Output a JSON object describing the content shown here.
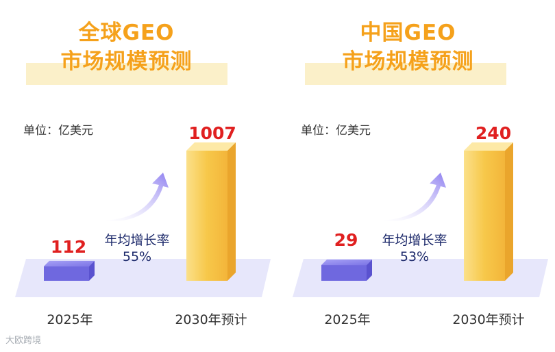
{
  "chart_data": [
    {
      "type": "bar",
      "title_line1": "全球GEO",
      "title_line2": "市场规模预测",
      "unit_label": "单位：亿美元",
      "categories": [
        "2025年",
        "2030年预计"
      ],
      "values": [
        112,
        1007
      ],
      "value_labels": [
        "112",
        "1007"
      ],
      "cagr_label": "年均增长率",
      "cagr_value": "55%"
    },
    {
      "type": "bar",
      "title_line1": "中国GEO",
      "title_line2": "市场规模预测",
      "unit_label": "单位：亿美元",
      "categories": [
        "2025年",
        "2030年预计"
      ],
      "values": [
        29,
        240
      ],
      "value_labels": [
        "29",
        "240"
      ],
      "cagr_label": "年均增长率",
      "cagr_value": "53%"
    }
  ],
  "colors": {
    "title": "#f5a11b",
    "title_band": "#fbf0c9",
    "value": "#e02020",
    "floor": "#e7e7fb",
    "small_bar": "#7b74e6",
    "tall_bar": "#f7c84a",
    "arrow": "#8e7ff0"
  },
  "watermark": "大欧跨境"
}
